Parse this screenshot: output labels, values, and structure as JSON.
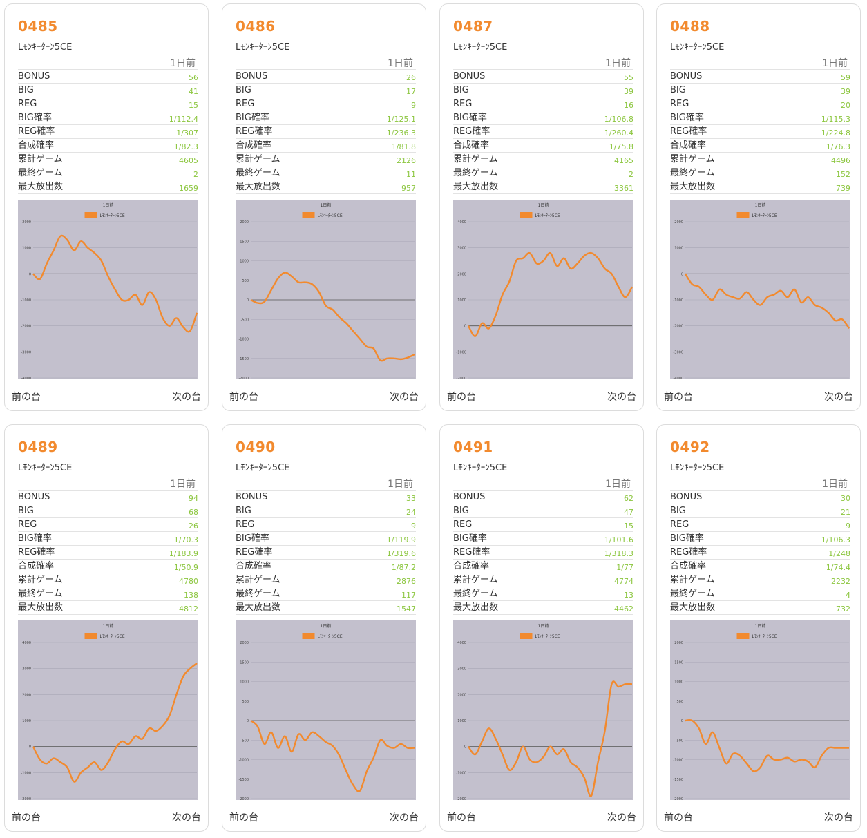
{
  "accent_color": "#f28a2e",
  "value_color": "#8cc63f",
  "labels": {
    "column_header": "1日前",
    "rows": [
      "BONUS",
      "BIG",
      "REG",
      "BIG確率",
      "REG確率",
      "合成確率",
      "累計ゲーム",
      "最終ゲーム",
      "最大放出数"
    ],
    "prev": "前の台",
    "next": "次の台"
  },
  "machines": [
    {
      "number": "0485",
      "model": "Lﾓﾝｷｰﾀｰﾝ5CE",
      "values": [
        "56",
        "41",
        "15",
        "1/112.4",
        "1/307",
        "1/82.3",
        "4605",
        "2",
        "1659"
      ]
    },
    {
      "number": "0486",
      "model": "Lﾓﾝｷｰﾀｰﾝ5CE",
      "values": [
        "26",
        "17",
        "9",
        "1/125.1",
        "1/236.3",
        "1/81.8",
        "2126",
        "11",
        "957"
      ]
    },
    {
      "number": "0487",
      "model": "Lﾓﾝｷｰﾀｰﾝ5CE",
      "values": [
        "55",
        "39",
        "16",
        "1/106.8",
        "1/260.4",
        "1/75.8",
        "4165",
        "2",
        "3361"
      ]
    },
    {
      "number": "0488",
      "model": "Lﾓﾝｷｰﾀｰﾝ5CE",
      "values": [
        "59",
        "39",
        "20",
        "1/115.3",
        "1/224.8",
        "1/76.3",
        "4496",
        "152",
        "739"
      ]
    },
    {
      "number": "0489",
      "model": "Lﾓﾝｷｰﾀｰﾝ5CE",
      "values": [
        "94",
        "68",
        "26",
        "1/70.3",
        "1/183.9",
        "1/50.9",
        "4780",
        "138",
        "4812"
      ]
    },
    {
      "number": "0490",
      "model": "Lﾓﾝｷｰﾀｰﾝ5CE",
      "values": [
        "33",
        "24",
        "9",
        "1/119.9",
        "1/319.6",
        "1/87.2",
        "2876",
        "117",
        "1547"
      ]
    },
    {
      "number": "0491",
      "model": "Lﾓﾝｷｰﾀｰﾝ5CE",
      "values": [
        "62",
        "47",
        "15",
        "1/101.6",
        "1/318.3",
        "1/77",
        "4774",
        "13",
        "4462"
      ]
    },
    {
      "number": "0492",
      "model": "Lﾓﾝｷｰﾀｰﾝ5CE",
      "values": [
        "30",
        "21",
        "9",
        "1/106.3",
        "1/248",
        "1/74.4",
        "2232",
        "4",
        "732"
      ]
    }
  ],
  "chart_data": [
    {
      "type": "line",
      "title": "1日前",
      "series": [
        {
          "name": "Lﾓﾝｷｰﾀｰﾝ5CE",
          "color": "#f28a2e",
          "y": [
            0,
            -200,
            400,
            900,
            1450,
            1300,
            900,
            1250,
            1000,
            800,
            500,
            -100,
            -600,
            -1000,
            -1000,
            -800,
            -1200,
            -700,
            -1000,
            -1700,
            -2000,
            -1700,
            -2050,
            -2200,
            -1500
          ]
        }
      ],
      "ylim": [
        -4000,
        2000
      ],
      "yticks": [
        2000,
        1000,
        0,
        -1000,
        -2000,
        -3000,
        -4000
      ],
      "grid": true,
      "legend": "top"
    },
    {
      "type": "line",
      "title": "1日前",
      "series": [
        {
          "name": "Lﾓﾝｷｰﾀｰﾝ5CE",
          "color": "#f28a2e",
          "y": [
            0,
            -80,
            -50,
            250,
            550,
            700,
            600,
            450,
            450,
            400,
            200,
            -150,
            -250,
            -450,
            -600,
            -800,
            -1000,
            -1200,
            -1250,
            -1550,
            -1500,
            -1500,
            -1520,
            -1480,
            -1400
          ]
        }
      ],
      "ylim": [
        -2000,
        2000
      ],
      "yticks": [
        2000,
        1500,
        1000,
        500,
        0,
        -500,
        -1000,
        -1500,
        -2000
      ],
      "grid": true,
      "legend": "top"
    },
    {
      "type": "line",
      "title": "1日前",
      "series": [
        {
          "name": "Lﾓﾝｷｰﾀｰﾝ5CE",
          "color": "#f28a2e",
          "y": [
            0,
            -400,
            100,
            -100,
            400,
            1200,
            1700,
            2500,
            2600,
            2800,
            2400,
            2500,
            2800,
            2300,
            2600,
            2200,
            2400,
            2700,
            2800,
            2600,
            2200,
            2000,
            1500,
            1100,
            1500
          ]
        }
      ],
      "ylim": [
        -2000,
        4000
      ],
      "yticks": [
        4000,
        3000,
        2000,
        1000,
        0,
        -1000,
        -2000
      ],
      "grid": true,
      "legend": "top"
    },
    {
      "type": "line",
      "title": "1日前",
      "series": [
        {
          "name": "Lﾓﾝｷｰﾀｰﾝ5CE",
          "color": "#f28a2e",
          "y": [
            0,
            -400,
            -500,
            -800,
            -1000,
            -600,
            -800,
            -900,
            -950,
            -700,
            -1000,
            -1200,
            -900,
            -800,
            -650,
            -900,
            -600,
            -1100,
            -900,
            -1200,
            -1300,
            -1500,
            -1800,
            -1750,
            -2100
          ]
        }
      ],
      "ylim": [
        -4000,
        2000
      ],
      "yticks": [
        2000,
        1000,
        0,
        -1000,
        -2000,
        -3000,
        -4000
      ],
      "grid": true,
      "legend": "top"
    },
    {
      "type": "line",
      "title": "1日前",
      "series": [
        {
          "name": "Lﾓﾝｷｰﾀｰﾝ5CE",
          "color": "#f28a2e",
          "y": [
            0,
            -500,
            -650,
            -450,
            -600,
            -800,
            -1350,
            -1000,
            -800,
            -600,
            -900,
            -600,
            -100,
            200,
            100,
            400,
            300,
            700,
            600,
            800,
            1200,
            2000,
            2700,
            3000,
            3200
          ]
        }
      ],
      "ylim": [
        -2000,
        4000
      ],
      "yticks": [
        4000,
        3000,
        2000,
        1000,
        0,
        -1000,
        -2000
      ],
      "grid": true,
      "legend": "top"
    },
    {
      "type": "line",
      "title": "1日前",
      "series": [
        {
          "name": "Lﾓﾝｷｰﾀｰﾝ5CE",
          "color": "#f28a2e",
          "y": [
            0,
            -150,
            -600,
            -300,
            -700,
            -400,
            -800,
            -350,
            -500,
            -300,
            -400,
            -550,
            -650,
            -900,
            -1300,
            -1650,
            -1800,
            -1300,
            -950,
            -500,
            -650,
            -700,
            -600,
            -700,
            -700
          ]
        }
      ],
      "ylim": [
        -2000,
        2000
      ],
      "yticks": [
        2000,
        1500,
        1000,
        500,
        0,
        -500,
        -1000,
        -1500,
        -2000
      ],
      "grid": true,
      "legend": "top"
    },
    {
      "type": "line",
      "title": "1日前",
      "series": [
        {
          "name": "Lﾓﾝｷｰﾀｰﾝ5CE",
          "color": "#f28a2e",
          "y": [
            0,
            -300,
            200,
            700,
            300,
            -300,
            -900,
            -600,
            0,
            -500,
            -600,
            -400,
            0,
            -300,
            -100,
            -600,
            -800,
            -1200,
            -1900,
            -600,
            600,
            2400,
            2300,
            2400,
            2400
          ]
        }
      ],
      "ylim": [
        -2000,
        4000
      ],
      "yticks": [
        4000,
        3000,
        2000,
        1000,
        0,
        -1000,
        -2000
      ],
      "grid": true,
      "legend": "top"
    },
    {
      "type": "line",
      "title": "1日前",
      "series": [
        {
          "name": "Lﾓﾝｷｰﾀｰﾝ5CE",
          "color": "#f28a2e",
          "y": [
            0,
            0,
            -200,
            -600,
            -300,
            -700,
            -1100,
            -850,
            -900,
            -1100,
            -1300,
            -1200,
            -900,
            -1000,
            -1000,
            -950,
            -1050,
            -1000,
            -1050,
            -1200,
            -900,
            -700,
            -700,
            -700,
            -700
          ]
        }
      ],
      "ylim": [
        -2000,
        2000
      ],
      "yticks": [
        2000,
        1500,
        1000,
        500,
        0,
        -500,
        -1000,
        -1500,
        -2000
      ],
      "grid": true,
      "legend": "top"
    }
  ]
}
